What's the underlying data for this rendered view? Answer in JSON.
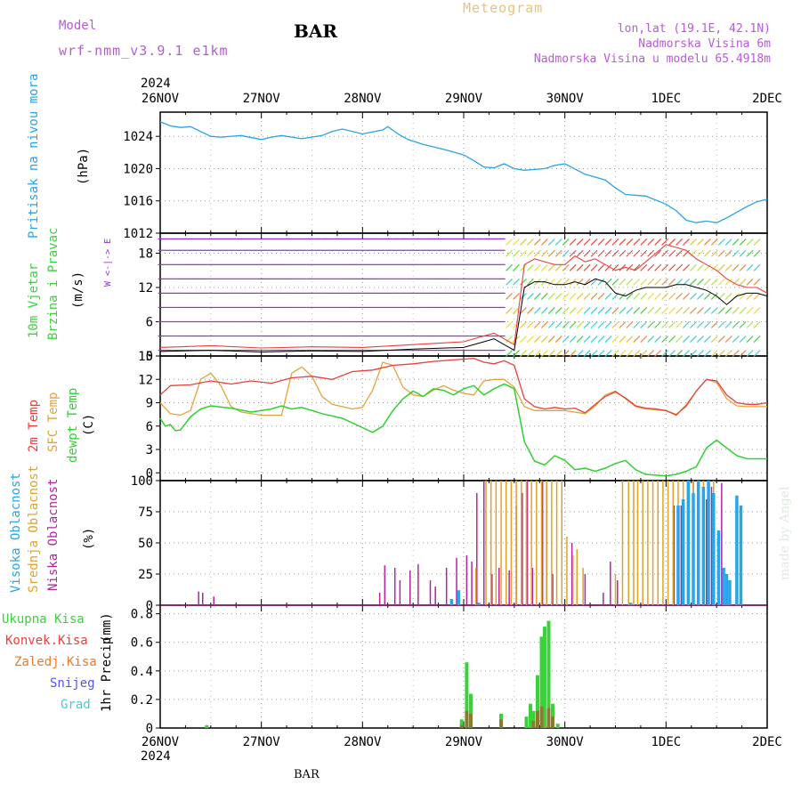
{
  "header": {
    "model_label": "Model",
    "model_name": "wrf-nmm_v3.9.1 e1km",
    "station": "BAR",
    "product": "Meteogram",
    "lonlat": "lon,lat (19.1E, 42.1N)",
    "elevation": "Nadmorska Visina 6m",
    "model_elevation": "Nadmorska Visina u modelu 65.4918m",
    "footer_station": "BAR",
    "watermark": "made by Angel"
  },
  "colors": {
    "pressure": "#29a3e6",
    "temp2m": "#e8403a",
    "sfc_temp": "#e3a23a",
    "dewpoint": "#2ed12e",
    "high_cloud": "#27a6e8",
    "mid_cloud": "#e0a22a",
    "low_cloud": "#b3259e",
    "precip_total": "#3ad13a",
    "precip_conv": "#e8403a",
    "precip_frozen": "#e87a2a",
    "snow": "#5555ee",
    "graupel": "#3acfcf",
    "wind_label": "#9a2ad1"
  },
  "chart_data": [
    {
      "type": "line",
      "panel": "pressure",
      "ylabel": "Pritisak na nivou mora",
      "unit": "(hPa)",
      "ylim": [
        1012,
        1027
      ],
      "yticks": [
        1012,
        1016,
        1020,
        1024
      ],
      "x_top_year": "2024",
      "x_bottom_year": "2024",
      "xticks": [
        "26NOV",
        "27NOV",
        "28NOV",
        "29NOV",
        "30NOV",
        "1DEC",
        "2DEC"
      ],
      "grid": true,
      "series": [
        {
          "name": "Pritisak na nivou mora",
          "x": [
            0,
            0.1,
            0.2,
            0.3,
            0.4,
            0.5,
            0.6,
            0.8,
            1.0,
            1.1,
            1.2,
            1.4,
            1.6,
            1.7,
            1.8,
            2.0,
            2.2,
            2.25,
            2.35,
            2.45,
            2.5,
            2.6,
            2.8,
            3.0,
            3.1,
            3.2,
            3.3,
            3.4,
            3.5,
            3.6,
            3.7,
            3.8,
            3.9,
            4.0,
            4.2,
            4.4,
            4.5,
            4.6,
            4.8,
            5.0,
            5.1,
            5.2,
            5.3,
            5.4,
            5.5,
            5.6,
            5.7,
            5.8,
            5.9,
            6.0
          ],
          "values": [
            1025.8,
            1025.3,
            1025.1,
            1025.2,
            1024.6,
            1024.0,
            1023.9,
            1024.1,
            1023.6,
            1023.9,
            1024.1,
            1023.7,
            1024.1,
            1024.6,
            1024.9,
            1024.3,
            1024.8,
            1025.2,
            1024.3,
            1023.6,
            1023.4,
            1023.0,
            1022.4,
            1021.7,
            1021.0,
            1020.2,
            1020.1,
            1020.6,
            1020.0,
            1019.8,
            1019.9,
            1020.0,
            1020.4,
            1020.6,
            1019.3,
            1018.6,
            1017.6,
            1016.8,
            1016.6,
            1015.6,
            1014.8,
            1013.6,
            1013.3,
            1013.5,
            1013.3,
            1013.9,
            1014.6,
            1015.3,
            1015.9,
            1016.2
          ]
        }
      ]
    },
    {
      "type": "line",
      "panel": "wind",
      "ylabel_lines": [
        "10m Vjetar",
        "Brzina i Pravac"
      ],
      "unit": "(m/s)",
      "compass": "W <-|-> E",
      "ylim": [
        0,
        21.5
      ],
      "yticks": [
        0,
        6,
        12,
        18
      ],
      "grid": true,
      "series": [
        {
          "name": "10m Vjetar",
          "x": [
            0,
            0.5,
            1.0,
            1.5,
            2.0,
            2.5,
            3.0,
            3.2,
            3.3,
            3.4,
            3.5,
            3.6,
            3.7,
            3.8,
            3.9,
            4.0,
            4.1,
            4.2,
            4.3,
            4.4,
            4.5,
            4.6,
            4.7,
            4.8,
            4.9,
            5.0,
            5.1,
            5.2,
            5.3,
            5.4,
            5.5,
            5.6,
            5.7,
            5.8,
            5.9,
            6.0
          ],
          "values": [
            0.8,
            1.0,
            0.7,
            0.9,
            0.8,
            1.2,
            1.5,
            2.5,
            3.0,
            2.0,
            1.0,
            12.0,
            13.0,
            13.0,
            12.5,
            12.5,
            13.0,
            12.5,
            13.5,
            13.0,
            11.0,
            10.5,
            11.5,
            12.0,
            12.0,
            12.0,
            12.5,
            12.5,
            12.0,
            11.5,
            10.5,
            9.0,
            10.5,
            11.0,
            11.0,
            10.5
          ]
        },
        {
          "name": "max",
          "x": [
            0,
            0.5,
            1.0,
            1.5,
            2.0,
            2.5,
            3.0,
            3.2,
            3.3,
            3.4,
            3.5,
            3.6,
            3.7,
            3.8,
            3.9,
            4.0,
            4.1,
            4.2,
            4.3,
            4.4,
            4.5,
            4.6,
            4.7,
            4.8,
            4.9,
            5.0,
            5.1,
            5.2,
            5.3,
            5.4,
            5.5,
            5.6,
            5.7,
            5.8,
            5.9,
            6.0
          ],
          "values": [
            1.5,
            1.8,
            1.4,
            1.6,
            1.5,
            2.0,
            2.5,
            3.5,
            4.0,
            3.0,
            2.0,
            16.0,
            17.0,
            16.5,
            16.0,
            16.0,
            17.5,
            16.5,
            17.0,
            16.0,
            15.0,
            15.5,
            15.0,
            16.5,
            18.0,
            19.5,
            19.0,
            18.5,
            17.0,
            16.0,
            15.0,
            13.5,
            12.5,
            12.0,
            12.0,
            11.0
          ]
        }
      ]
    },
    {
      "type": "line",
      "panel": "temperature",
      "ylabel_lines": [
        "2m Temp",
        "SFC Temp",
        "dewpt Temp"
      ],
      "unit": "(C)",
      "ylim": [
        -1,
        15
      ],
      "yticks": [
        0,
        3,
        6,
        9,
        12,
        15
      ],
      "grid": true,
      "series": [
        {
          "name": "2m Temp",
          "x": [
            0,
            0.1,
            0.3,
            0.5,
            0.7,
            0.9,
            1.1,
            1.3,
            1.5,
            1.7,
            1.9,
            2.1,
            2.3,
            2.5,
            2.7,
            2.9,
            3.1,
            3.2,
            3.3,
            3.4,
            3.5,
            3.6,
            3.7,
            3.8,
            3.9,
            4.0,
            4.1,
            4.2,
            4.3,
            4.4,
            4.5,
            4.6,
            4.7,
            4.8,
            4.9,
            5.0,
            5.1,
            5.2,
            5.3,
            5.4,
            5.5,
            5.6,
            5.7,
            5.8,
            5.9,
            6.0
          ],
          "values": [
            10.0,
            11.2,
            11.3,
            11.8,
            11.4,
            11.8,
            11.5,
            12.2,
            12.4,
            12.0,
            13.0,
            13.2,
            13.8,
            14.0,
            14.3,
            14.5,
            14.7,
            14.2,
            14.0,
            14.4,
            13.8,
            9.5,
            8.5,
            8.2,
            8.4,
            8.2,
            8.3,
            7.7,
            8.8,
            9.8,
            10.4,
            9.6,
            8.6,
            8.3,
            8.2,
            8.0,
            7.4,
            8.7,
            10.5,
            12.0,
            11.8,
            10.0,
            9.0,
            8.8,
            8.8,
            9.0
          ]
        },
        {
          "name": "SFC Temp",
          "x": [
            0,
            0.1,
            0.2,
            0.3,
            0.4,
            0.5,
            0.6,
            0.7,
            0.8,
            1.0,
            1.2,
            1.3,
            1.4,
            1.5,
            1.6,
            1.7,
            1.8,
            1.9,
            2.0,
            2.1,
            2.2,
            2.3,
            2.4,
            2.5,
            2.6,
            2.7,
            2.8,
            2.9,
            3.0,
            3.1,
            3.2,
            3.3,
            3.4,
            3.5,
            3.6,
            3.7,
            3.8,
            4.0,
            4.2,
            4.3,
            4.4,
            4.5,
            4.6,
            4.7,
            4.8,
            5.0,
            5.1,
            5.2,
            5.3,
            5.4,
            5.5,
            5.6,
            5.7,
            5.8,
            6.0
          ],
          "values": [
            9.0,
            7.6,
            7.4,
            8.0,
            12.0,
            12.8,
            11.2,
            8.5,
            7.8,
            7.4,
            7.4,
            12.8,
            13.6,
            12.4,
            9.8,
            8.8,
            8.5,
            8.2,
            8.4,
            10.6,
            14.2,
            13.8,
            11.0,
            10.0,
            9.8,
            10.6,
            11.2,
            10.6,
            10.2,
            10.0,
            11.8,
            12.0,
            12.0,
            11.0,
            8.5,
            8.0,
            8.0,
            8.0,
            7.6,
            8.6,
            10.0,
            10.5,
            9.5,
            8.5,
            8.2,
            8.0,
            7.5,
            8.5,
            10.5,
            12.0,
            11.6,
            9.5,
            8.6,
            8.5,
            8.5
          ]
        },
        {
          "name": "dewpt Temp",
          "x": [
            0,
            0.05,
            0.1,
            0.15,
            0.2,
            0.3,
            0.4,
            0.5,
            0.7,
            0.9,
            1.1,
            1.2,
            1.3,
            1.4,
            1.5,
            1.6,
            1.8,
            2.0,
            2.1,
            2.2,
            2.3,
            2.4,
            2.5,
            2.6,
            2.7,
            2.8,
            2.9,
            3.0,
            3.1,
            3.2,
            3.3,
            3.4,
            3.5,
            3.6,
            3.7,
            3.8,
            3.9,
            4.0,
            4.1,
            4.2,
            4.3,
            4.4,
            4.5,
            4.6,
            4.7,
            4.8,
            5.0,
            5.1,
            5.2,
            5.3,
            5.4,
            5.5,
            5.6,
            5.7,
            5.8,
            6.0
          ],
          "values": [
            7.0,
            6.0,
            6.2,
            5.4,
            5.5,
            7.2,
            8.2,
            8.6,
            8.3,
            7.8,
            8.2,
            8.6,
            8.2,
            8.4,
            8.0,
            7.6,
            7.0,
            5.8,
            5.2,
            6.0,
            8.0,
            9.5,
            10.5,
            9.8,
            10.8,
            10.6,
            10.0,
            10.8,
            11.2,
            10.0,
            10.8,
            11.4,
            10.8,
            4.0,
            1.5,
            1.0,
            2.2,
            1.6,
            0.4,
            0.6,
            0.2,
            0.6,
            1.2,
            1.6,
            0.4,
            -0.2,
            -0.4,
            -0.2,
            0.2,
            0.8,
            3.2,
            4.2,
            3.2,
            2.2,
            1.8,
            1.8
          ]
        }
      ]
    },
    {
      "type": "bar",
      "panel": "cloud",
      "ylabel_lines": [
        "Visoka Oblacnost",
        "Srednja Oblacnost",
        "Niska Oblacnost"
      ],
      "unit": "(%)",
      "ylim": [
        0,
        100
      ],
      "yticks": [
        0,
        25,
        50,
        75,
        100
      ],
      "grid": true,
      "series": [
        {
          "name": "Niska Oblacnost",
          "x": [
            0.38,
            0.42,
            0.53,
            2.17,
            2.22,
            2.32,
            2.37,
            2.47,
            2.55,
            2.67,
            2.72,
            2.83,
            2.93,
            3.03,
            3.08,
            3.13,
            3.2,
            3.28,
            3.35,
            3.45,
            3.52,
            3.58,
            3.63,
            3.68,
            3.78,
            3.82,
            3.88,
            3.97,
            4.07,
            4.12,
            4.2,
            4.38,
            4.45,
            4.52,
            5.08,
            5.15,
            5.22,
            5.27,
            5.32,
            5.4,
            5.45,
            5.55
          ],
          "values": [
            11,
            10,
            7,
            10,
            32,
            30,
            20,
            28,
            33,
            20,
            15,
            30,
            38,
            40,
            35,
            90,
            100,
            25,
            30,
            28,
            80,
            90,
            100,
            30,
            100,
            95,
            25,
            100,
            50,
            20,
            25,
            10,
            35,
            20,
            80,
            80,
            92,
            100,
            95,
            85,
            95,
            98
          ]
        },
        {
          "name": "Srednja Oblacnost",
          "x": [
            3.12,
            3.22,
            3.27,
            3.32,
            3.37,
            3.42,
            3.47,
            3.52,
            3.57,
            3.62,
            3.67,
            3.72,
            3.77,
            3.82,
            3.87,
            3.92,
            3.97,
            4.02,
            4.08,
            4.12,
            4.18,
            4.5,
            4.57,
            4.63,
            4.68,
            4.72,
            4.77,
            4.82,
            4.87,
            4.92,
            4.97,
            5.02,
            5.07,
            5.12,
            5.17,
            5.22,
            5.27,
            5.32,
            5.37,
            5.42,
            5.47
          ],
          "values": [
            30,
            100,
            100,
            100,
            100,
            100,
            100,
            100,
            100,
            100,
            100,
            100,
            100,
            100,
            100,
            100,
            100,
            55,
            40,
            45,
            30,
            25,
            100,
            100,
            100,
            100,
            100,
            100,
            100,
            100,
            100,
            100,
            100,
            100,
            100,
            100,
            100,
            100,
            100,
            100,
            100
          ]
        },
        {
          "name": "Visoka Oblacnost",
          "x": [
            2.88,
            2.95,
            3.15,
            4.65,
            5.12,
            5.17,
            5.22,
            5.27,
            5.32,
            5.37,
            5.42,
            5.47,
            5.52,
            5.57,
            5.6,
            5.63,
            5.7,
            5.74
          ],
          "values": [
            5,
            12,
            2,
            2,
            80,
            85,
            100,
            90,
            100,
            95,
            100,
            90,
            60,
            30,
            25,
            20,
            88,
            80
          ]
        }
      ]
    },
    {
      "type": "bar",
      "panel": "precip",
      "ylabel": "1hr Precip",
      "unit": "(mm)",
      "legend": [
        "Ukupna Kisa",
        "Konvek.Kisa",
        "Zaledj.Kisa",
        "Snijeg",
        "Grad"
      ],
      "ylim": [
        0,
        0.86
      ],
      "yticks": [
        0,
        0.2,
        0.4,
        0.6,
        0.8
      ],
      "grid": true,
      "series": [
        {
          "name": "Ukupna Kisa",
          "x": [
            0.46,
            2.98,
            3.03,
            3.07,
            3.37,
            3.62,
            3.66,
            3.69,
            3.73,
            3.77,
            3.8,
            3.84,
            3.88,
            3.93
          ],
          "values": [
            0.02,
            0.06,
            0.46,
            0.24,
            0.1,
            0.08,
            0.17,
            0.12,
            0.37,
            0.64,
            0.71,
            0.75,
            0.17,
            0.03
          ]
        },
        {
          "name": "Konvek.Kisa",
          "x": [
            2.98,
            3.03,
            3.07,
            3.37,
            3.69,
            3.73,
            3.77,
            3.84,
            3.88
          ],
          "values": [
            0.02,
            0.12,
            0.1,
            0.06,
            0.05,
            0.12,
            0.15,
            0.14,
            0.08
          ]
        }
      ]
    }
  ]
}
